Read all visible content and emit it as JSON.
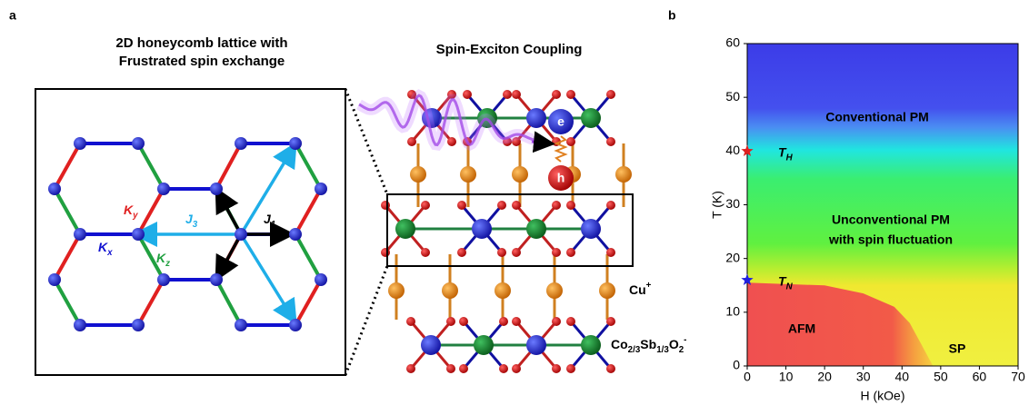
{
  "panel_a": {
    "label": "a",
    "title": [
      "2D honeycomb lattice with",
      "Frustrated spin exchange"
    ],
    "coupling_title": "Spin-Exciton Coupling",
    "bonds": [
      {
        "name": "K",
        "sub": "y"
      },
      {
        "name": "K",
        "sub": "x"
      },
      {
        "name": "K",
        "sub": "z"
      }
    ],
    "exchanges": [
      {
        "name": "J",
        "sub": "3"
      },
      {
        "name": "J",
        "sub": "1"
      }
    ],
    "carriers": [
      "e",
      "h"
    ],
    "layers": [
      [
        {
          "text": "Cu"
        },
        {
          "sup": "+"
        }
      ],
      [
        {
          "text": "Co"
        },
        {
          "sub": "2/3"
        },
        {
          "text": "Sb"
        },
        {
          "sub": "1/3"
        },
        {
          "text": "O"
        },
        {
          "sub": "2"
        },
        {
          "sup": "-"
        }
      ]
    ]
  },
  "chart_data": {
    "type": "phase",
    "label": "b",
    "xlabel": "H (kOe)",
    "ylabel": "T (K)",
    "xlim": [
      0,
      70
    ],
    "ylim": [
      0,
      60
    ],
    "xticks": [
      0,
      10,
      20,
      30,
      40,
      50,
      60,
      70
    ],
    "yticks": [
      0,
      10,
      20,
      30,
      40,
      50,
      60
    ],
    "afm_boundary": {
      "x": [
        0,
        20,
        30,
        38,
        42,
        45,
        48
      ],
      "y": [
        15.5,
        15,
        13.5,
        11,
        8,
        4,
        0
      ]
    },
    "markers": [
      {
        "name": "T",
        "sub": "H",
        "x": 0,
        "y": 40,
        "color": "#e02020"
      },
      {
        "name": "T",
        "sub": "N",
        "x": 0,
        "y": 16,
        "color": "#2020e0"
      }
    ],
    "annotations": [
      "Conventional PM",
      "Unconventional PM",
      "with spin fluctuation",
      "AFM",
      "SP"
    ]
  }
}
